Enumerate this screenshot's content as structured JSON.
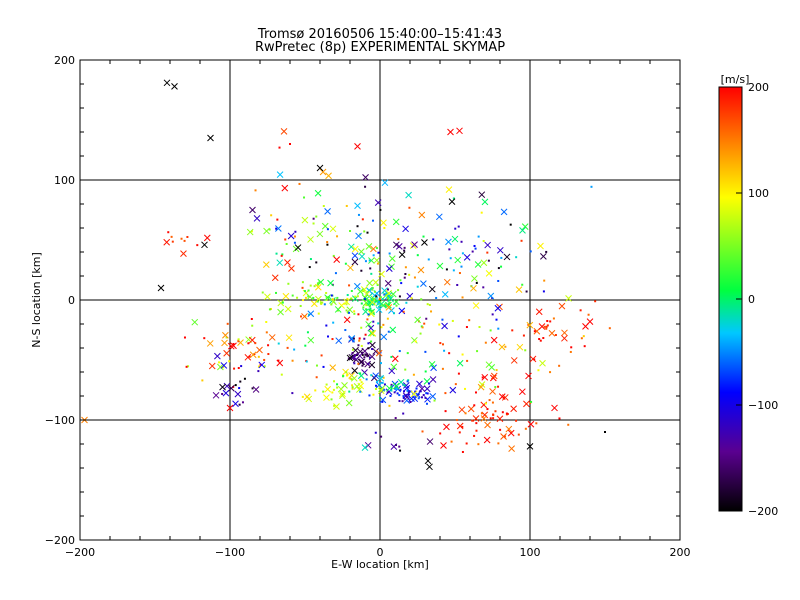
{
  "chart_data": {
    "type": "scatter",
    "title": "Tromsø 20160506 15:40:00–15:41:43",
    "subtitle": "RwPretec (8p) EXPERIMENTAL SKYMAP",
    "xlabel": "E-W location [km]",
    "ylabel": "N-S location [km]",
    "xlim": [
      -200,
      200
    ],
    "ylim": [
      -200,
      200
    ],
    "x_ticks": [
      "−200",
      "−100",
      "0",
      "100",
      "200"
    ],
    "y_ticks": [
      "−200",
      "−100",
      "0",
      "100",
      "200"
    ],
    "grid_x": [
      -100,
      0,
      100
    ],
    "grid_y": [
      -100,
      0,
      100
    ],
    "colorbar": {
      "label": "[m/s]",
      "range": [
        -200,
        200
      ],
      "ticks": [
        "−200",
        "−100",
        "0",
        "100",
        "200"
      ],
      "colormap": [
        "#000000",
        "#5a0090",
        "#0000ff",
        "#00c8ff",
        "#00ff40",
        "#ffff00",
        "#ff8000",
        "#ff0000"
      ]
    },
    "marker_legend": {
      "x_marker": "x",
      "dot_marker": "dot"
    },
    "clusters": [
      {
        "cx": 0,
        "cy": 0,
        "sx": 8,
        "sy": 6,
        "n": 70,
        "v": 0,
        "dv": 40
      },
      {
        "cx": -35,
        "cy": -2,
        "sx": 22,
        "sy": 8,
        "n": 70,
        "v": 60,
        "dv": 50
      },
      {
        "cx": -12,
        "cy": -48,
        "sx": 5,
        "sy": 6,
        "n": 45,
        "v": -160,
        "dv": 40
      },
      {
        "cx": 18,
        "cy": -77,
        "sx": 10,
        "sy": 6,
        "n": 55,
        "v": -100,
        "dv": 40
      },
      {
        "cx": -25,
        "cy": -75,
        "sx": 14,
        "sy": 8,
        "n": 45,
        "v": 80,
        "dv": 40
      },
      {
        "cx": 5,
        "cy": -68,
        "sx": 12,
        "sy": 6,
        "n": 30,
        "v": -30,
        "dv": 40
      },
      {
        "cx": 75,
        "cy": -100,
        "sx": 22,
        "sy": 12,
        "n": 60,
        "v": 180,
        "dv": 30
      },
      {
        "cx": 115,
        "cy": -25,
        "sx": 18,
        "sy": 10,
        "n": 30,
        "v": 180,
        "dv": 30
      },
      {
        "cx": 75,
        "cy": -50,
        "sx": 25,
        "sy": 20,
        "n": 50,
        "v": 120,
        "dv": 130
      },
      {
        "cx": -90,
        "cy": -45,
        "sx": 18,
        "sy": 20,
        "n": 55,
        "v": 150,
        "dv": 120
      },
      {
        "cx": -95,
        "cy": -70,
        "sx": 10,
        "sy": 10,
        "n": 20,
        "v": -150,
        "dv": 60
      },
      {
        "cx": -15,
        "cy": 45,
        "sx": 30,
        "sy": 25,
        "n": 90,
        "v": -20,
        "dv": 200
      },
      {
        "cx": 40,
        "cy": 20,
        "sx": 35,
        "sy": 20,
        "n": 60,
        "v": -20,
        "dv": 200
      },
      {
        "cx": 70,
        "cy": 40,
        "sx": 25,
        "sy": 20,
        "n": 35,
        "v": 0,
        "dv": 200
      },
      {
        "cx": -60,
        "cy": 60,
        "sx": 25,
        "sy": 25,
        "n": 30,
        "v": 80,
        "dv": 150
      },
      {
        "cx": 20,
        "cy": -30,
        "sx": 30,
        "sy": 20,
        "n": 50,
        "v": 50,
        "dv": 180
      },
      {
        "cx": -30,
        "cy": -30,
        "sx": 30,
        "sy": 20,
        "n": 50,
        "v": 50,
        "dv": 180
      },
      {
        "cx": 10,
        "cy": -120,
        "sx": 15,
        "sy": 10,
        "n": 10,
        "v": -150,
        "dv": 50
      },
      {
        "cx": -130,
        "cy": 50,
        "sx": 10,
        "sy": 6,
        "n": 10,
        "v": 180,
        "dv": 20
      }
    ],
    "fixed_points": [
      {
        "x": -142,
        "y": 181,
        "v": -200,
        "m": "x"
      },
      {
        "x": -137,
        "y": 178,
        "v": -200,
        "m": "x"
      },
      {
        "x": -113,
        "y": 135,
        "v": -200,
        "m": "x"
      },
      {
        "x": -117,
        "y": 46,
        "v": -200,
        "m": "x"
      },
      {
        "x": -146,
        "y": 10,
        "v": -200,
        "m": "x"
      },
      {
        "x": -60,
        "y": 130,
        "v": 200,
        "m": "dot"
      },
      {
        "x": -67,
        "y": 127,
        "v": 200,
        "m": "dot"
      },
      {
        "x": -15,
        "y": 128,
        "v": 200,
        "m": "x"
      },
      {
        "x": 47,
        "y": 140,
        "v": 200,
        "m": "x"
      },
      {
        "x": 53,
        "y": 141,
        "v": 200,
        "m": "x"
      },
      {
        "x": -40,
        "y": 110,
        "v": -200,
        "m": "x"
      },
      {
        "x": 32,
        "y": -134,
        "v": -200,
        "m": "x"
      },
      {
        "x": 33,
        "y": -139,
        "v": -200,
        "m": "x"
      },
      {
        "x": -10,
        "y": -123,
        "v": -20,
        "m": "x"
      },
      {
        "x": -197,
        "y": -100,
        "v": 150,
        "m": "x"
      },
      {
        "x": -100,
        "y": -90,
        "v": 200,
        "m": "x"
      },
      {
        "x": 140,
        "y": -18,
        "v": 200,
        "m": "x"
      },
      {
        "x": 137,
        "y": -22,
        "v": 200,
        "m": "x"
      },
      {
        "x": 100,
        "y": -122,
        "v": -200,
        "m": "x"
      },
      {
        "x": 150,
        "y": -110,
        "v": -200,
        "m": "dot"
      },
      {
        "x": 107,
        "y": 45,
        "v": 100,
        "m": "x"
      },
      {
        "x": 95,
        "y": 58,
        "v": -10,
        "m": "x"
      },
      {
        "x": 46,
        "y": 92,
        "v": 100,
        "m": "x"
      },
      {
        "x": 48,
        "y": 82,
        "v": -200,
        "m": "x"
      },
      {
        "x": -85,
        "y": 75,
        "v": -160,
        "m": "x"
      },
      {
        "x": -82,
        "y": 68,
        "v": -120,
        "m": "x"
      }
    ]
  }
}
